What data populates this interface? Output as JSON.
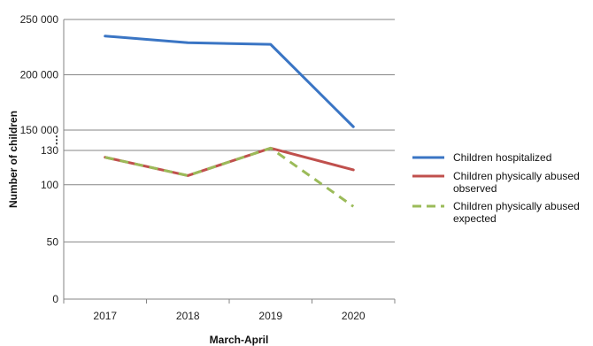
{
  "chart_data": {
    "type": "line",
    "xlabel": "March-April",
    "ylabel": "Number of children",
    "categories": [
      "2017",
      "2018",
      "2019",
      "2020"
    ],
    "y_axis": {
      "broken": true,
      "upper_segment": {
        "range": [
          150000,
          250000
        ],
        "ticks": [
          "250 000",
          "200 000",
          "150 000"
        ]
      },
      "lower_segment": {
        "range": [
          0,
          130
        ],
        "ticks": [
          "130",
          "100",
          "50",
          "0"
        ]
      }
    },
    "grid": true,
    "legend_position": "right",
    "series": [
      {
        "name": "Children hospitalized",
        "segment": "upper",
        "color": "#3a75c4",
        "style": "solid",
        "values": [
          235000,
          229000,
          227500,
          153000
        ]
      },
      {
        "name": "Children physically abused observed",
        "segment": "lower",
        "color": "#c0504d",
        "style": "solid",
        "values": [
          124,
          108,
          132,
          113
        ]
      },
      {
        "name": "Children physically abused expected",
        "segment": "lower",
        "color": "#9bbb59",
        "style": "dashed",
        "values": [
          124,
          108,
          132,
          81
        ]
      }
    ],
    "legend": [
      {
        "label_lines": [
          "Children hospitalized"
        ]
      },
      {
        "label_lines": [
          "Children physically abused",
          "observed"
        ]
      },
      {
        "label_lines": [
          "Children physically abused",
          "expected"
        ]
      }
    ]
  }
}
